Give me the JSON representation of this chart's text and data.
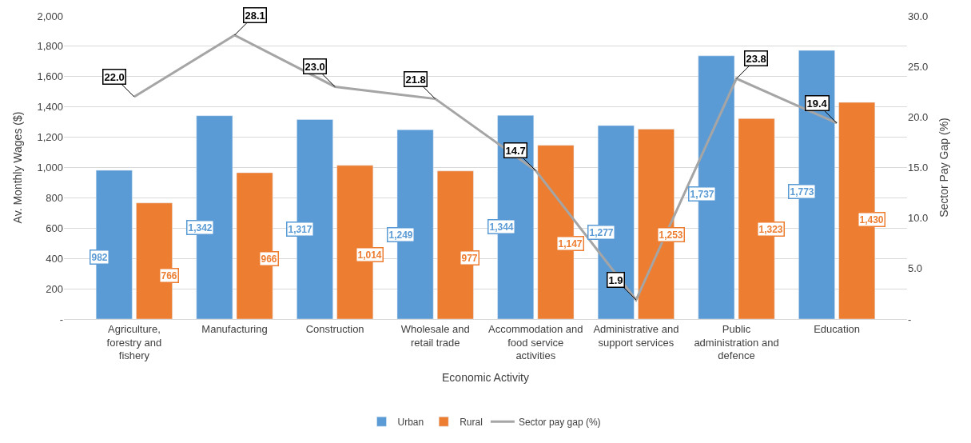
{
  "chart_data": {
    "type": "bar",
    "xlabel": "Economic Activity",
    "ylabel": "Av. Monthly Wages ($)",
    "y2label": "Sector Pay Gap (%)",
    "categories": [
      "Agriculture, forestry and fishery",
      "Manufacturing",
      "Construction",
      "Wholesale and retail trade",
      "Accommodation and food service activities",
      "Administrative and support services",
      "Public administration and defence",
      "Education"
    ],
    "series": [
      {
        "name": "Urban",
        "color": "#5b9bd5",
        "values": [
          982,
          1342,
          1317,
          1249,
          1344,
          1277,
          1737,
          1773
        ],
        "value_labels": [
          "982",
          "1,342",
          "1,317",
          "1,249",
          "1,344",
          "1,277",
          "1,737",
          "1,773"
        ]
      },
      {
        "name": "Rural",
        "color": "#ed7d31",
        "values": [
          766,
          966,
          1014,
          977,
          1147,
          1253,
          1323,
          1430
        ],
        "value_labels": [
          "766",
          "966",
          "1,014",
          "977",
          "1,147",
          "1,253",
          "1,323",
          "1,430"
        ]
      },
      {
        "name": "Sector pay gap (%)",
        "type": "line",
        "axis": "y2",
        "color": "#a5a5a5",
        "marker": "none",
        "values": [
          22.0,
          28.1,
          23.0,
          21.8,
          14.7,
          1.9,
          23.8,
          19.4
        ],
        "value_labels": [
          "22.0",
          "28.1",
          "23.0",
          "21.8",
          "14.7",
          "1.9",
          "23.8",
          "19.4"
        ]
      }
    ],
    "ylim": [
      0,
      2000
    ],
    "yticks": [
      {
        "value": 0,
        "label": "-"
      },
      200,
      400,
      600,
      800,
      {
        "value": 1000,
        "label": "1,000"
      },
      {
        "value": 1200,
        "label": "1,200"
      },
      {
        "value": 1400,
        "label": "1,400"
      },
      {
        "value": 1600,
        "label": "1,600"
      },
      {
        "value": 1800,
        "label": "1,800"
      },
      {
        "value": 2000,
        "label": "2,000"
      }
    ],
    "y2lim": [
      0,
      30
    ],
    "y2ticks": [
      {
        "value": 0,
        "label": "-"
      },
      {
        "value": 5,
        "label": "5.0"
      },
      {
        "value": 10,
        "label": "10.0"
      },
      {
        "value": 15,
        "label": "15.0"
      },
      {
        "value": 20,
        "label": "20.0"
      },
      {
        "value": 25,
        "label": "25.0"
      },
      {
        "value": 30,
        "label": "30.0"
      }
    ],
    "grid": "y",
    "legend": "bottom"
  }
}
